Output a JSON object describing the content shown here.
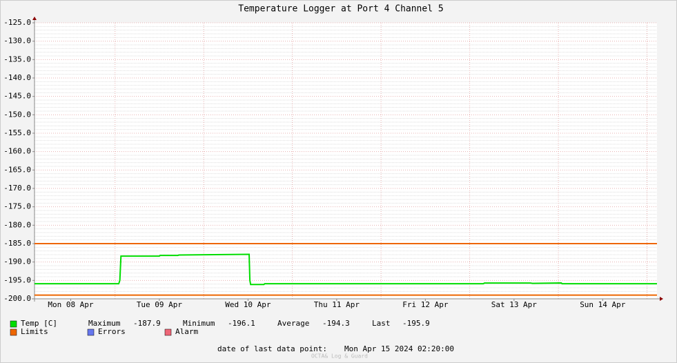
{
  "chart_data": {
    "type": "line",
    "title": "Temperature Logger at Port 4 Channel 5",
    "xlim": [
      2.2,
      170.7
    ],
    "xticks": [
      {
        "value": 12,
        "label": "Mon 08 Apr"
      },
      {
        "value": 36,
        "label": "Tue 09 Apr"
      },
      {
        "value": 60,
        "label": "Wed 10 Apr"
      },
      {
        "value": 84,
        "label": "Thu 11 Apr"
      },
      {
        "value": 108,
        "label": "Fri 12 Apr"
      },
      {
        "value": 132,
        "label": "Sat 13 Apr"
      },
      {
        "value": 156,
        "label": "Sun 14 Apr"
      }
    ],
    "xgrid": [
      24,
      48,
      72,
      96,
      120,
      144,
      168
    ],
    "ylim": [
      -200,
      -125
    ],
    "yticks": [
      {
        "value": -125,
        "label": "-125.0"
      },
      {
        "value": -130,
        "label": "-130.0"
      },
      {
        "value": -135,
        "label": "-135.0"
      },
      {
        "value": -140,
        "label": "-140.0"
      },
      {
        "value": -145,
        "label": "-145.0"
      },
      {
        "value": -150,
        "label": "-150.0"
      },
      {
        "value": -155,
        "label": "-155.0"
      },
      {
        "value": -160,
        "label": "-160.0"
      },
      {
        "value": -165,
        "label": "-165.0"
      },
      {
        "value": -170,
        "label": "-170.0"
      },
      {
        "value": -175,
        "label": "-175.0"
      },
      {
        "value": -180,
        "label": "-180.0"
      },
      {
        "value": -185,
        "label": "-185.0"
      },
      {
        "value": -190,
        "label": "-190.0"
      },
      {
        "value": -195,
        "label": "-195.0"
      },
      {
        "value": -200,
        "label": "-200.0"
      }
    ],
    "grid": true,
    "series": [
      {
        "name": "Temp [C]",
        "color": "#00dd00",
        "x": [
          2.2,
          25.0,
          25.3,
          25.6,
          36.0,
          36.2,
          41.0,
          41.3,
          60.3,
          60.5,
          60.7,
          64.3,
          64.5,
          123.7,
          124.0,
          136.4,
          137.0,
          144.8,
          145.0,
          170.7
        ],
        "values": [
          -195.9,
          -195.9,
          -195.0,
          -188.4,
          -188.4,
          -188.2,
          -188.2,
          -188.1,
          -187.9,
          -195.0,
          -196.1,
          -196.1,
          -195.9,
          -195.9,
          -195.7,
          -195.7,
          -195.8,
          -195.7,
          -195.9,
          -195.9
        ]
      },
      {
        "name": "Limits",
        "color": "#ee6600",
        "levels": [
          -185,
          -199
        ]
      },
      {
        "name": "Errors",
        "color": "#6677ee"
      },
      {
        "name": "Alarm",
        "color": "#ee6677"
      }
    ],
    "stats": [
      {
        "label": "Maximum",
        "value": -187.9
      },
      {
        "label": "Minimum",
        "value": -196.1
      },
      {
        "label": "Average",
        "value": -194.3
      },
      {
        "label": "Last",
        "value": -195.9
      }
    ],
    "footer_label": "date of last data point:",
    "footer_value": "Mon Apr 15 2024 02:20:00",
    "watermark": "OCTA& Log & Guard"
  }
}
